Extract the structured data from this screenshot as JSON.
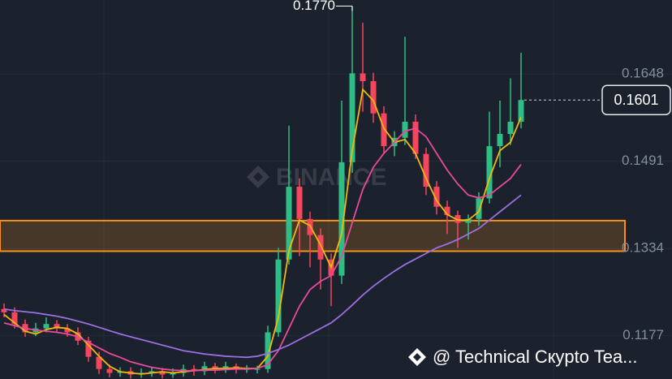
{
  "chart_data": {
    "type": "candlestick",
    "open": [
      0.1225,
      0.1219,
      0.1198,
      0.1183,
      0.119,
      0.1198,
      0.119,
      0.1183,
      0.1168,
      0.1139,
      0.1117,
      0.111,
      0.1113,
      0.1107,
      0.111,
      0.1113,
      0.1107,
      0.111,
      0.1117,
      0.1113,
      0.1122,
      0.1117,
      0.1122,
      0.1117,
      0.1117,
      0.1117,
      0.1183,
      0.1314,
      0.1445,
      0.1387,
      0.1358,
      0.1314,
      0.1285,
      0.1489,
      0.1649,
      0.1635,
      0.1577,
      0.1518,
      0.1533,
      0.1562,
      0.1504,
      0.1445,
      0.1409,
      0.1394,
      0.138,
      0.1387,
      0.1424,
      0.1518,
      0.154,
      0.1562
    ],
    "high": [
      0.1235,
      0.1228,
      0.1206,
      0.12,
      0.121,
      0.1205,
      0.1198,
      0.1192,
      0.1175,
      0.1148,
      0.1125,
      0.112,
      0.112,
      0.1118,
      0.112,
      0.1119,
      0.1118,
      0.1125,
      0.1124,
      0.113,
      0.1128,
      0.113,
      0.1127,
      0.1124,
      0.1123,
      0.1195,
      0.1335,
      0.1555,
      0.146,
      0.14,
      0.137,
      0.1325,
      0.16,
      0.177,
      0.174,
      0.165,
      0.159,
      0.1545,
      0.1715,
      0.1575,
      0.1515,
      0.1455,
      0.142,
      0.1402,
      0.1395,
      0.1435,
      0.158,
      0.16,
      0.164,
      0.1686
    ],
    "low": [
      0.121,
      0.119,
      0.1175,
      0.1176,
      0.1183,
      0.1182,
      0.1175,
      0.116,
      0.113,
      0.1108,
      0.1102,
      0.1103,
      0.11,
      0.1101,
      0.1103,
      0.11,
      0.1101,
      0.1103,
      0.1105,
      0.1106,
      0.1109,
      0.111,
      0.1109,
      0.111,
      0.1109,
      0.111,
      0.1175,
      0.1305,
      0.132,
      0.13,
      0.126,
      0.123,
      0.127,
      0.147,
      0.158,
      0.156,
      0.1505,
      0.15,
      0.152,
      0.1495,
      0.143,
      0.1395,
      0.136,
      0.1335,
      0.135,
      0.1375,
      0.1415,
      0.148,
      0.152,
      0.155
    ],
    "close": [
      0.1219,
      0.1198,
      0.1183,
      0.119,
      0.1198,
      0.119,
      0.1183,
      0.1168,
      0.1139,
      0.1117,
      0.111,
      0.1113,
      0.1107,
      0.111,
      0.1113,
      0.1107,
      0.111,
      0.1117,
      0.1113,
      0.1122,
      0.1117,
      0.1122,
      0.1117,
      0.1117,
      0.1117,
      0.1183,
      0.1314,
      0.1445,
      0.1387,
      0.1358,
      0.1314,
      0.1285,
      0.1489,
      0.1649,
      0.1635,
      0.1577,
      0.1518,
      0.1533,
      0.1562,
      0.1504,
      0.1445,
      0.1409,
      0.1394,
      0.138,
      0.1387,
      0.1424,
      0.1518,
      0.154,
      0.1562,
      0.1601
    ],
    "up_color": "#2ebd85",
    "down_color": "#f6465d",
    "series": [
      {
        "color": "#f0b90b",
        "values": [
          0.1215,
          0.12,
          0.1185,
          0.118,
          0.1188,
          0.1192,
          0.119,
          0.118,
          0.116,
          0.114,
          0.1122,
          0.1112,
          0.111,
          0.1108,
          0.111,
          0.1112,
          0.111,
          0.1112,
          0.1114,
          0.1116,
          0.1118,
          0.1118,
          0.1119,
          0.1118,
          0.1118,
          0.114,
          0.121,
          0.133,
          0.1385,
          0.1375,
          0.134,
          0.13,
          0.136,
          0.151,
          0.162,
          0.16,
          0.155,
          0.1525,
          0.153,
          0.1505,
          0.146,
          0.142,
          0.1395,
          0.1385,
          0.1385,
          0.14,
          0.146,
          0.151,
          0.1525,
          0.157
        ]
      },
      {
        "color": "#e84a9c",
        "values": [
          0.12,
          0.1195,
          0.119,
          0.1187,
          0.1185,
          0.1183,
          0.118,
          0.1175,
          0.1165,
          0.1155,
          0.1145,
          0.1138,
          0.113,
          0.1125,
          0.112,
          0.1117,
          0.1115,
          0.1114,
          0.1114,
          0.1115,
          0.1115,
          0.1116,
          0.1117,
          0.1117,
          0.1118,
          0.1125,
          0.115,
          0.119,
          0.123,
          0.126,
          0.1275,
          0.1285,
          0.132,
          0.138,
          0.144,
          0.148,
          0.1505,
          0.1525,
          0.1545,
          0.155,
          0.1535,
          0.1505,
          0.1475,
          0.145,
          0.143,
          0.1425,
          0.143,
          0.1445,
          0.146,
          0.1485
        ]
      },
      {
        "color": "#9b6fe0",
        "values": [
          0.1225,
          0.1222,
          0.122,
          0.1218,
          0.1215,
          0.1212,
          0.1208,
          0.1203,
          0.1198,
          0.1192,
          0.1186,
          0.118,
          0.1175,
          0.117,
          0.1165,
          0.116,
          0.1155,
          0.115,
          0.1147,
          0.1144,
          0.1142,
          0.114,
          0.1139,
          0.1138,
          0.114,
          0.1145,
          0.1152,
          0.116,
          0.117,
          0.118,
          0.119,
          0.12,
          0.1215,
          0.1232,
          0.125,
          0.1266,
          0.128,
          0.1293,
          0.1305,
          0.1315,
          0.1325,
          0.1335,
          0.1342,
          0.135,
          0.136,
          0.137,
          0.1385,
          0.14,
          0.1415,
          0.143
        ]
      }
    ],
    "zone": [
      0.1329,
      0.1384
    ],
    "zone_color": "#f7931a",
    "ylim": [
      0.1099,
      0.1781
    ],
    "yticks": [
      0.1177,
      0.1334,
      0.1491,
      0.1648
    ],
    "grid": true,
    "current_price": 0.1601,
    "high_annotation": {
      "value": 0.177,
      "label": "0.1770"
    },
    "watermark": "BINANCE",
    "credit": "@ Technical Cкypto Tea..."
  }
}
